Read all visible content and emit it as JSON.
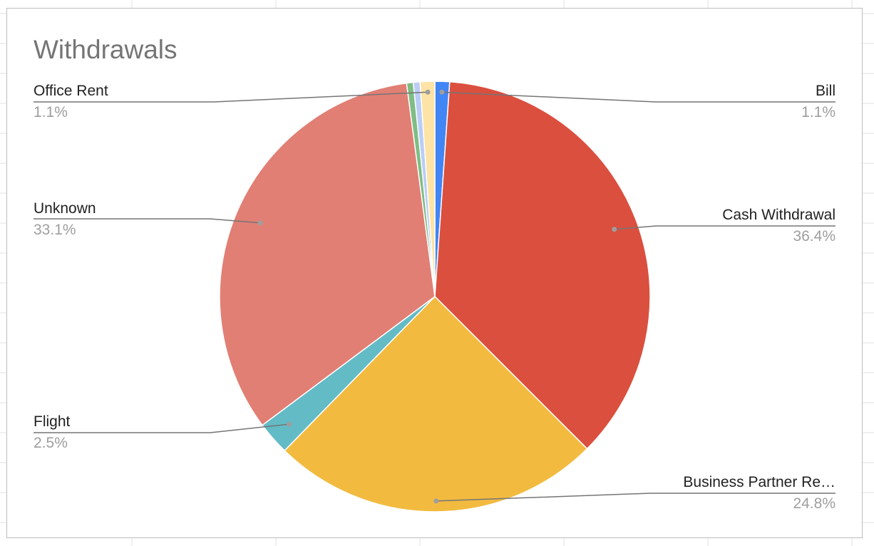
{
  "chart_data": {
    "type": "pie",
    "title": "Withdrawals",
    "slices": [
      {
        "name": "Bill",
        "display_name": "Bill",
        "percent_label": "1.1%",
        "value": 1.1,
        "color": "#4285f4"
      },
      {
        "name": "Cash Withdrawal",
        "display_name": "Cash Withdrawal",
        "percent_label": "36.4%",
        "value": 36.4,
        "color": "#db4f3e"
      },
      {
        "name": "Business Partner Re…",
        "display_name": "Business Partner Re…",
        "percent_label": "24.8%",
        "value": 24.8,
        "color": "#f2bb40"
      },
      {
        "name": "Flight",
        "display_name": "Flight",
        "percent_label": "2.5%",
        "value": 2.5,
        "color": "#63bbc6"
      },
      {
        "name": "Unknown",
        "display_name": "Unknown",
        "percent_label": "33.1%",
        "value": 33.1,
        "color": "#e17f74"
      },
      {
        "name": "",
        "display_name": "",
        "percent_label": "",
        "value": 0.5,
        "color": "#7fbd84"
      },
      {
        "name": "",
        "display_name": "",
        "percent_label": "",
        "value": 0.5,
        "color": "#b9cdf6"
      },
      {
        "name": "Office Rent",
        "display_name": "Office Rent",
        "percent_label": "1.1%",
        "value": 1.1,
        "color": "#fde3a5"
      }
    ],
    "legend": "none",
    "labels": "outside-with-leader-lines"
  }
}
